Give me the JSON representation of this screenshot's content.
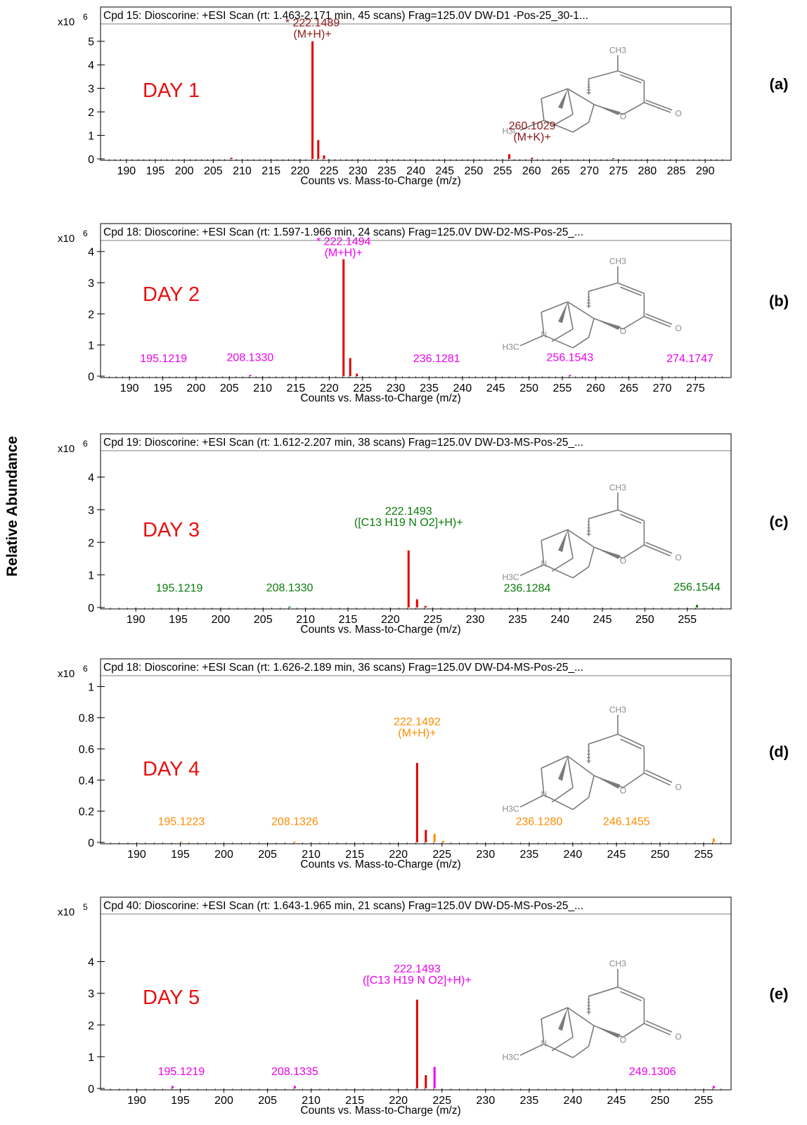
{
  "figure": {
    "ylabel": "Relative Abundance"
  },
  "chart_data": [
    {
      "panel_label": "(a)",
      "type": "bar",
      "title": "Cpd 15: Dioscorine: +ESI Scan (rt: 1.463-2.171 min, 45 scans) Frag=125.0V  DW-D1 -Pos-25_30-1...",
      "day_label": "DAY 1",
      "y_multiplier": "x10",
      "y_exponent": "6",
      "xlabel": "Counts vs. Mass-to-Charge (m/z)",
      "xlim": [
        186.5,
        293.5
      ],
      "ylim": [
        0,
        5.5
      ],
      "x_ticks": [
        190,
        195,
        200,
        205,
        210,
        215,
        220,
        225,
        230,
        235,
        240,
        245,
        250,
        255,
        260,
        265,
        270,
        275,
        280,
        285,
        290
      ],
      "y_ticks": [
        0,
        1,
        2,
        3,
        4,
        5
      ],
      "color": "#8b1a1a",
      "bars": [
        {
          "x": 208.13,
          "y": 0.05,
          "c": "#8b1a1a"
        },
        {
          "x": 222.15,
          "y": 5.0,
          "c": "#e00000"
        },
        {
          "x": 223.15,
          "y": 0.8,
          "c": "#e00000"
        },
        {
          "x": 224.15,
          "y": 0.15,
          "c": "#e00000"
        },
        {
          "x": 256.15,
          "y": 0.2,
          "c": "#e00000"
        },
        {
          "x": 260.1,
          "y": 0.05,
          "c": "#8b1a1a"
        },
        {
          "x": 274.17,
          "y": 0.03,
          "c": "#8b1a1a"
        }
      ],
      "peak_labels": [
        {
          "x": 222.15,
          "y": 5.15,
          "lines": [
            "* 222.1489",
            "(M+H)+"
          ]
        },
        {
          "x": 260.1,
          "y": 0.78,
          "lines": [
            "260.1029",
            "(M+K)+"
          ]
        }
      ]
    },
    {
      "panel_label": "(b)",
      "type": "bar",
      "title": "Cpd 18: Dioscorine: +ESI Scan (rt: 1.597-1.966 min, 24 scans) Frag=125.0V DW-D2-MS-Pos-25_...",
      "day_label": "DAY 2",
      "y_multiplier": "x10",
      "y_exponent": "6",
      "xlabel": "Counts vs. Mass-to-Charge (m/z)",
      "xlim": [
        186.5,
        279.5
      ],
      "ylim": [
        0,
        4.4
      ],
      "x_ticks": [
        190,
        195,
        200,
        205,
        210,
        215,
        220,
        225,
        230,
        235,
        240,
        245,
        250,
        255,
        260,
        265,
        270,
        275
      ],
      "y_ticks": [
        0,
        1,
        2,
        3,
        4
      ],
      "color": "#ee00ee",
      "bars": [
        {
          "x": 208.13,
          "y": 0.04,
          "c": "#ee00ee"
        },
        {
          "x": 222.15,
          "y": 3.75,
          "c": "#e00000"
        },
        {
          "x": 223.15,
          "y": 0.58,
          "c": "#e00000"
        },
        {
          "x": 224.15,
          "y": 0.08,
          "c": "#e00000"
        },
        {
          "x": 256.15,
          "y": 0.04,
          "c": "#ee00ee"
        }
      ],
      "peak_labels": [
        {
          "x": 222.15,
          "y": 3.85,
          "lines": [
            "* 222.1494",
            "(M+H)+"
          ]
        },
        {
          "x": 195.12,
          "y": 0.45,
          "lines": [
            "195.1219"
          ]
        },
        {
          "x": 208.13,
          "y": 0.48,
          "lines": [
            "208.1330"
          ]
        },
        {
          "x": 236.13,
          "y": 0.45,
          "lines": [
            "236.1281"
          ]
        },
        {
          "x": 256.15,
          "y": 0.48,
          "lines": [
            "256.1543"
          ]
        },
        {
          "x": 274.17,
          "y": 0.45,
          "lines": [
            "274.1747"
          ]
        }
      ]
    },
    {
      "panel_label": "(c)",
      "type": "bar",
      "title": "Cpd 19: Dioscorine: +ESI Scan (rt: 1.612-2.207 min, 38 scans) Frag=125.0V DW-D3-MS-Pos-25_...",
      "day_label": "DAY 3",
      "y_multiplier": "x10",
      "y_exponent": "6",
      "xlabel": "Counts vs. Mass-to-Charge (m/z)",
      "xlim": [
        186.5,
        259.5
      ],
      "ylim": [
        0,
        4.4
      ],
      "x_ticks": [
        190,
        195,
        200,
        205,
        210,
        215,
        220,
        225,
        230,
        235,
        240,
        245,
        250,
        255
      ],
      "y_ticks": [
        0,
        1,
        2,
        3,
        4
      ],
      "color": "#0a7a0a",
      "bars": [
        {
          "x": 208.13,
          "y": 0.03,
          "c": "#0a7a0a"
        },
        {
          "x": 222.15,
          "y": 1.75,
          "c": "#e00000"
        },
        {
          "x": 223.15,
          "y": 0.25,
          "c": "#e00000"
        },
        {
          "x": 224.15,
          "y": 0.05,
          "c": "#e00000"
        },
        {
          "x": 256.15,
          "y": 0.08,
          "c": "#0a7a0a"
        }
      ],
      "peak_labels": [
        {
          "x": 222.15,
          "y": 2.5,
          "lines": [
            "222.1493",
            "([C13 H19 N O2]+H)+"
          ]
        },
        {
          "x": 195.12,
          "y": 0.48,
          "lines": [
            "195.1219"
          ]
        },
        {
          "x": 208.13,
          "y": 0.5,
          "lines": [
            "208.1330"
          ]
        },
        {
          "x": 236.13,
          "y": 0.48,
          "lines": [
            "236.1284"
          ]
        },
        {
          "x": 256.15,
          "y": 0.52,
          "lines": [
            "256.1544"
          ]
        }
      ]
    },
    {
      "panel_label": "(d)",
      "type": "bar",
      "title": "Cpd 18: Dioscorine: +ESI Scan (rt: 1.626-2.189 min, 36 scans) Frag=125.0V DW-D4-MS-Pos-25_...",
      "day_label": "DAY 4",
      "y_multiplier": "x10",
      "y_exponent": "6",
      "xlabel": "Counts vs. Mass-to-Charge (m/z)",
      "xlim": [
        186.5,
        257.5
      ],
      "ylim": [
        0,
        1.02
      ],
      "x_ticks": [
        190,
        195,
        200,
        205,
        210,
        215,
        220,
        225,
        230,
        235,
        240,
        245,
        250,
        255
      ],
      "y_ticks": [
        0,
        0.2,
        0.4,
        0.6,
        0.8,
        1
      ],
      "color": "#ff8c00",
      "bars": [
        {
          "x": 195.12,
          "y": 0.005,
          "c": "#ff8c00"
        },
        {
          "x": 208.13,
          "y": 0.005,
          "c": "#ff8c00"
        },
        {
          "x": 222.15,
          "y": 0.51,
          "c": "#e00000"
        },
        {
          "x": 223.15,
          "y": 0.08,
          "c": "#e00000"
        },
        {
          "x": 224.15,
          "y": 0.055,
          "c": "#ff8c00"
        },
        {
          "x": 225.15,
          "y": 0.01,
          "c": "#ff8c00"
        },
        {
          "x": 256.15,
          "y": 0.025,
          "c": "#ff8c00"
        }
      ],
      "peak_labels": [
        {
          "x": 222.15,
          "y": 0.68,
          "lines": [
            "222.1492",
            "(M+H)+"
          ]
        },
        {
          "x": 195.12,
          "y": 0.11,
          "lines": [
            "195.1223"
          ]
        },
        {
          "x": 208.13,
          "y": 0.11,
          "lines": [
            "208.1326"
          ]
        },
        {
          "x": 236.13,
          "y": 0.11,
          "lines": [
            "236.1280"
          ]
        },
        {
          "x": 246.15,
          "y": 0.11,
          "lines": [
            "246.1455"
          ]
        }
      ]
    },
    {
      "panel_label": "(e)",
      "type": "bar",
      "title": "Cpd 40: Dioscorine: +ESI Scan (rt: 1.643-1.965 min, 21 scans) Frag=125.0V DW-D5-MS-Pos-25_...",
      "day_label": "DAY 5",
      "y_multiplier": "x10",
      "y_exponent": "5",
      "xlabel": "Counts vs. Mass-to-Charge (m/z)",
      "xlim": [
        186.5,
        257.5
      ],
      "ylim": [
        0,
        4.7
      ],
      "x_ticks": [
        190,
        195,
        200,
        205,
        210,
        215,
        220,
        225,
        230,
        235,
        240,
        245,
        250,
        255
      ],
      "y_ticks": [
        0,
        1,
        2,
        3,
        4
      ],
      "color": "#ee00ee",
      "bars": [
        {
          "x": 194.1,
          "y": 0.08,
          "c": "#ee00ee"
        },
        {
          "x": 208.13,
          "y": 0.08,
          "c": "#ee00ee"
        },
        {
          "x": 222.15,
          "y": 2.8,
          "c": "#e00000"
        },
        {
          "x": 223.15,
          "y": 0.42,
          "c": "#e00000"
        },
        {
          "x": 224.15,
          "y": 0.68,
          "c": "#ee00ee"
        },
        {
          "x": 256.15,
          "y": 0.08,
          "c": "#ee00ee"
        }
      ],
      "peak_labels": [
        {
          "x": 222.15,
          "y": 3.3,
          "lines": [
            "222.1493",
            "([C13 H19 N O2]+H)+"
          ]
        },
        {
          "x": 195.12,
          "y": 0.42,
          "lines": [
            "195.1219"
          ]
        },
        {
          "x": 208.13,
          "y": 0.42,
          "lines": [
            "208.1335"
          ]
        },
        {
          "x": 249.13,
          "y": 0.42,
          "lines": [
            "249.1306"
          ]
        }
      ]
    }
  ],
  "structure_labels": {
    "ch3": "CH3",
    "h3c": "H3C",
    "n": "N",
    "o": "O"
  }
}
